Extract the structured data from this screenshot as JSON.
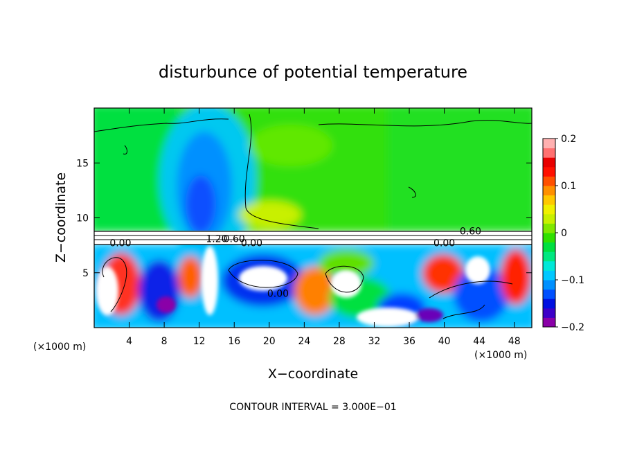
{
  "chart_data": {
    "type": "heatmap",
    "title": "disturbunce of potential temperature",
    "xlabel": "X−coordinate",
    "ylabel": "Z−coordinate",
    "x_unit": "(×1000 m)",
    "x_unit_right": "(×1000 m)",
    "xlim": [
      0,
      50
    ],
    "ylim": [
      0,
      20
    ],
    "x_ticks": [
      4,
      8,
      12,
      16,
      20,
      24,
      28,
      32,
      36,
      40,
      44,
      48
    ],
    "y_ticks": [
      5,
      10,
      15
    ],
    "colorbar": {
      "vmin": -0.2,
      "vmax": 0.2,
      "tick_labels": [
        "0.2",
        "0.1",
        "0",
        "−0.1",
        "−0.2"
      ],
      "tick_values": [
        0.2,
        0.1,
        0,
        -0.1,
        -0.2
      ],
      "colors": [
        "#8a00a8",
        "#3c00c8",
        "#0010e0",
        "#0050ff",
        "#0090ff",
        "#00c8ff",
        "#00e8d8",
        "#00e880",
        "#00e040",
        "#30e000",
        "#80e800",
        "#c8f000",
        "#f0f000",
        "#ffc800",
        "#ff9000",
        "#ff5000",
        "#ff1000",
        "#e80000",
        "#ff7070",
        "#ffb0b0"
      ]
    },
    "contour_labels": [
      {
        "text": "0.00",
        "x": 3,
        "z": 7.4
      },
      {
        "text": "1.20",
        "x": 14,
        "z": 7.8
      },
      {
        "text": "0.60",
        "x": 16,
        "z": 7.8
      },
      {
        "text": "0.00",
        "x": 18,
        "z": 7.4
      },
      {
        "text": "0.60",
        "x": 43,
        "z": 8.5
      },
      {
        "text": "0.00",
        "x": 40,
        "z": 7.4
      },
      {
        "text": "0.00",
        "x": 21,
        "z": 2.8
      }
    ],
    "note": "CONTOUR INTERVAL = 3.000E−01"
  }
}
